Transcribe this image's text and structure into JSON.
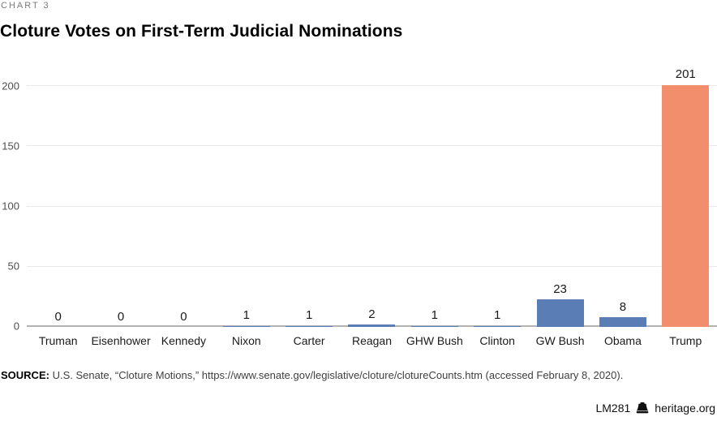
{
  "page": {
    "kicker": "CHART 3",
    "title": "Cloture Votes on First-Term Judicial Nominations",
    "source_label": "SOURCE:",
    "source_text": " U.S. Senate, “Cloture Motions,” https://www.senate.gov/legislative/cloture/clotureCounts.htm (accessed February 8, 2020).",
    "footer_code": "LM281",
    "footer_site": "heritage.org"
  },
  "chart_data": {
    "type": "bar",
    "title": "Cloture Votes on First-Term Judicial Nominations",
    "categories": [
      "Truman",
      "Eisenhower",
      "Kennedy",
      "Nixon",
      "Carter",
      "Reagan",
      "GHW Bush",
      "Clinton",
      "GW Bush",
      "Obama",
      "Trump"
    ],
    "values": [
      0,
      0,
      0,
      1,
      1,
      2,
      1,
      1,
      23,
      8,
      201
    ],
    "xlabel": "",
    "ylabel": "",
    "ylim": [
      0,
      200
    ],
    "yticks": [
      0,
      50,
      100,
      150,
      200
    ],
    "grid": true,
    "legend": false,
    "value_labels": true,
    "bar_color": "#5b7db5",
    "highlight_index": 10,
    "highlight_color": "#f28e6b",
    "gridline_color": "#e9e9e9",
    "baseline_color": "#b3b3b3"
  }
}
